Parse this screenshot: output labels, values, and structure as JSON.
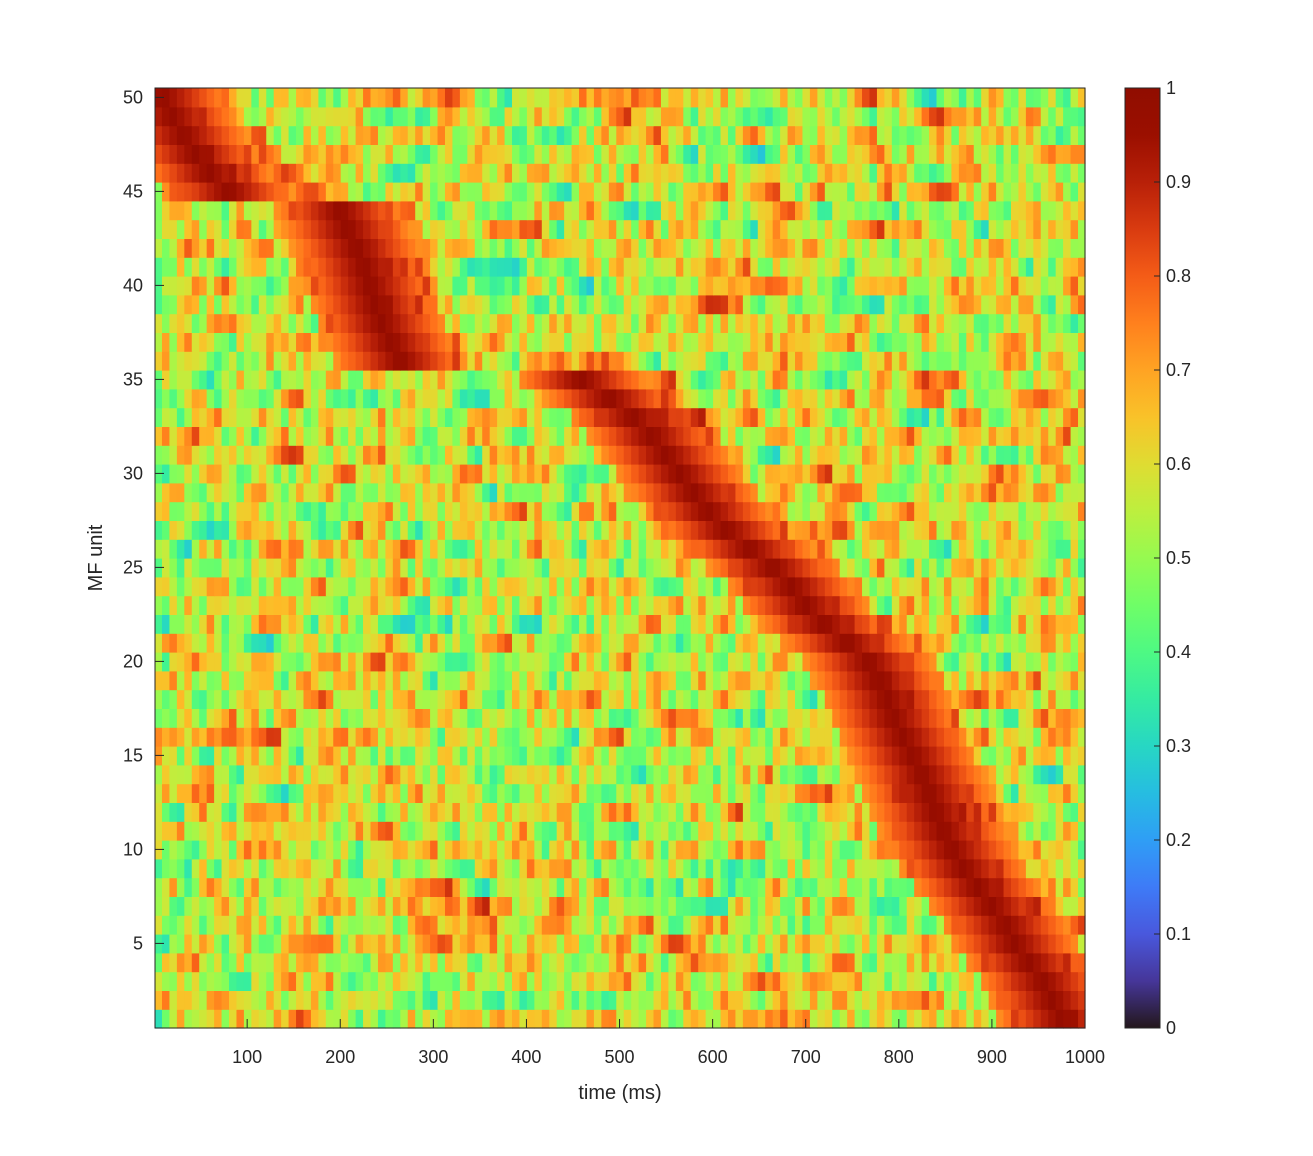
{
  "chart_data": {
    "type": "heatmap",
    "xlabel": "time (ms)",
    "ylabel": "MF unit",
    "xlim": [
      1,
      1000
    ],
    "ylim": [
      0.5,
      50.5
    ],
    "x_ticks": [
      100,
      200,
      300,
      400,
      500,
      600,
      700,
      800,
      900,
      1000
    ],
    "y_ticks": [
      5,
      10,
      15,
      20,
      25,
      30,
      35,
      40,
      45,
      50
    ],
    "colorbar": {
      "colormap": "turbo",
      "limits": [
        0,
        1
      ],
      "ticks": [
        0,
        0.1,
        0.2,
        0.3,
        0.4,
        0.5,
        0.6,
        0.7,
        0.8,
        0.9,
        1
      ],
      "tick_labels": [
        "0",
        "0.1",
        "0.2",
        "0.3",
        "0.4",
        "0.5",
        "0.6",
        "0.7",
        "0.8",
        "0.9",
        "1"
      ]
    },
    "units": 50,
    "time_bins_ms": 1000,
    "values_note_peak_by_unit": {
      "1": 975,
      "2": 965,
      "3": 955,
      "4": 940,
      "5": 925,
      "6": 915,
      "7": 900,
      "8": 885,
      "9": 870,
      "10": 858,
      "11": 848,
      "12": 840,
      "13": 833,
      "14": 825,
      "15": 815,
      "16": 805,
      "17": 795,
      "18": 788,
      "19": 778,
      "20": 768,
      "21": 745,
      "22": 720,
      "23": 700,
      "24": 685,
      "25": 665,
      "26": 640,
      "27": 615,
      "28": 595,
      "29": 580,
      "30": 565,
      "31": 550,
      "32": 535,
      "33": 515,
      "34": 490,
      "35": 460,
      "36": 265,
      "37": 255,
      "38": 245,
      "39": 238,
      "40": 232,
      "41": 226,
      "42": 218,
      "43": 208,
      "44": 200,
      "45": 80,
      "46": 60,
      "47": 45,
      "48": 32,
      "49": 20,
      "50": 10
    }
  }
}
